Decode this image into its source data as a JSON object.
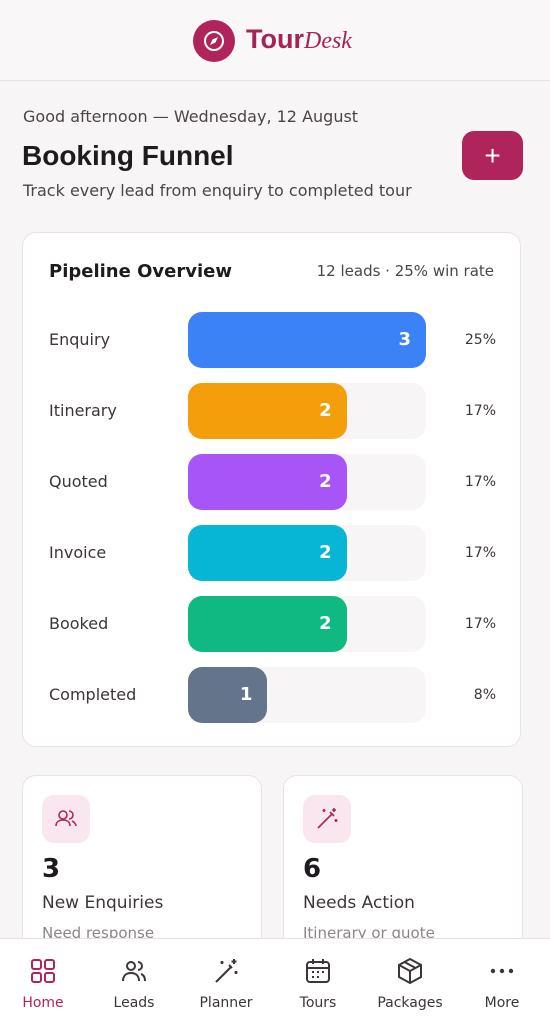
{
  "header": {
    "brand_main": "Tour",
    "brand_accent": "Desk"
  },
  "greeting": "Good afternoon — Wednesday, 12 August",
  "title": "Booking Funnel",
  "subtitle": "Track every lead from enquiry to completed tour",
  "add_button": "+",
  "pipeline": {
    "title": "Pipeline Overview",
    "summary": "12 leads · 25% win rate",
    "stages": [
      {
        "name": "Enquiry",
        "count": 3,
        "share": "25%",
        "color": "#3b82f6"
      },
      {
        "name": "Itinerary",
        "count": 2,
        "share": "17%",
        "color": "#f59e0b"
      },
      {
        "name": "Quoted",
        "count": 2,
        "share": "17%",
        "color": "#a855f7"
      },
      {
        "name": "Invoice",
        "count": 2,
        "share": "17%",
        "color": "#06b6d4"
      },
      {
        "name": "Booked",
        "count": 2,
        "share": "17%",
        "color": "#10b981"
      },
      {
        "name": "Completed",
        "count": 1,
        "share": "8%",
        "color": "#64748b"
      }
    ]
  },
  "stats": [
    {
      "value": "3",
      "label": "New Enquiries",
      "sub": "Need response"
    },
    {
      "value": "6",
      "label": "Needs Action",
      "sub": "Itinerary or quote"
    }
  ],
  "nav": [
    "Home",
    "Leads",
    "Planner",
    "Tours",
    "Packages",
    "More"
  ]
}
